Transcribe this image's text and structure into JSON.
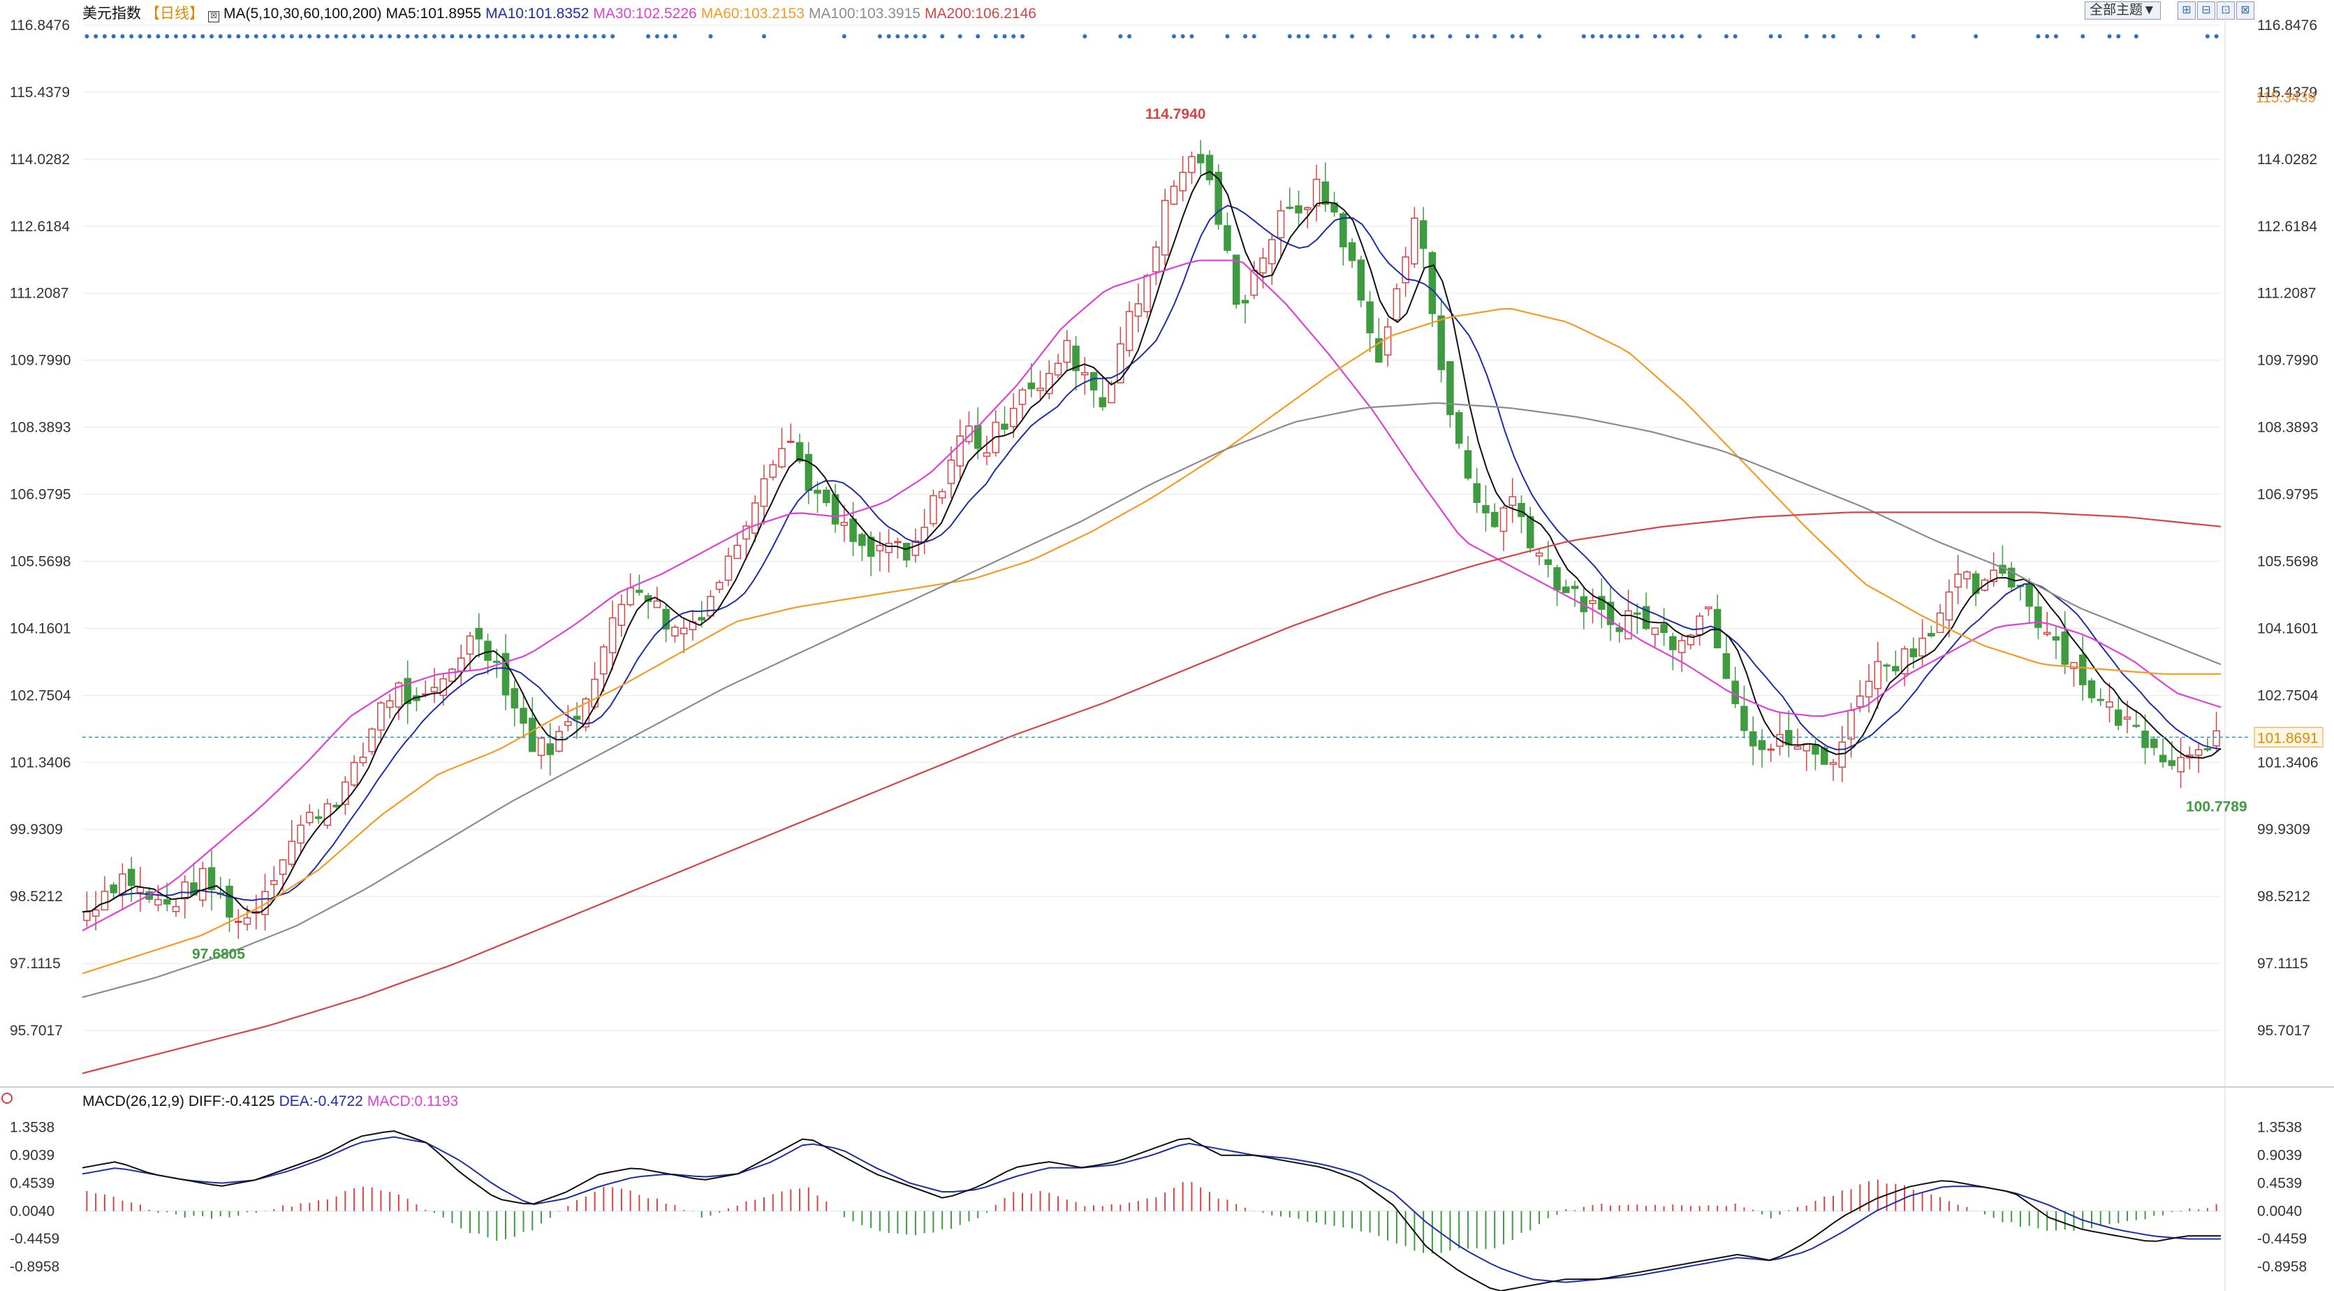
{
  "header": {
    "instrument": "美元指数",
    "period": "【日线】",
    "ma_params": "MA(5,10,30,60,100,200)",
    "ma5": "MA5:101.8955",
    "ma10": "MA10:101.8352",
    "ma30": "MA30:102.5226",
    "ma60": "MA60:103.2153",
    "ma100": "MA100:103.3915",
    "ma200": "MA200:106.2146",
    "theme_button": "全部主题▼"
  },
  "macd_header": {
    "params": "MACD(26,12,9)",
    "diff": "DIFF:-0.4125",
    "dea": "DEA:-0.4722",
    "macd": "MACD:0.1193"
  },
  "colors": {
    "up": "#d64545",
    "down": "#3f9b3f",
    "ma5": "#111111",
    "ma10": "#1c2fa8",
    "ma30": "#e040d8",
    "ma60": "#f59a23",
    "ma100": "#8c8c8c",
    "ma200": "#d64545",
    "grid": "#e8e8e8",
    "price_line": "#2a9bb8"
  },
  "chart_data": [
    {
      "type": "candlestick",
      "title": "美元指数",
      "ylim": [
        94.6,
        116.8476
      ],
      "y_ticks": [
        "116.8476",
        "115.4379",
        "114.0282",
        "112.6184",
        "111.2087",
        "109.7990",
        "108.3893",
        "106.9795",
        "105.5698",
        "104.1601",
        "102.7504",
        "101.3406",
        "99.9309",
        "98.5212",
        "97.1115",
        "95.7017"
      ],
      "annotations": {
        "high": "114.7940",
        "low_left": "97.6805",
        "low_right": "100.7789",
        "last_price": "101.8691",
        "ma60_marker": "115.3439"
      },
      "close_path": [
        98.2,
        98.7,
        99.0,
        98.5,
        98.3,
        98.6,
        98.9,
        98.4,
        97.9,
        98.6,
        99.4,
        100.0,
        100.4,
        100.7,
        101.3,
        102.6,
        102.9,
        102.4,
        102.9,
        103.6,
        104.1,
        103.4,
        102.4,
        101.6,
        101.8,
        102.3,
        103.3,
        104.3,
        105.3,
        104.7,
        104.1,
        104.3,
        104.9,
        105.7,
        106.8,
        107.8,
        108.1,
        107.2,
        106.5,
        106.1,
        105.6,
        106.0,
        105.5,
        106.4,
        107.5,
        108.4,
        107.9,
        108.6,
        109.4,
        109.1,
        110.1,
        109.6,
        108.9,
        110.3,
        111.2,
        112.8,
        113.8,
        114.1,
        112.6,
        110.9,
        111.9,
        112.7,
        113.0,
        113.4,
        112.8,
        111.4,
        109.8,
        111.1,
        112.9,
        110.6,
        108.2,
        106.9,
        106.4,
        106.9,
        106.0,
        105.3,
        104.8,
        104.6,
        104.2,
        104.5,
        104.2,
        103.9,
        104.2,
        104.6,
        103.2,
        102.0,
        101.6,
        101.8,
        101.6,
        101.3,
        101.9,
        103.2,
        103.4,
        103.6,
        104.0,
        104.6,
        105.2,
        104.9,
        105.4,
        105.0,
        104.3,
        103.8,
        103.2,
        102.6,
        102.3,
        102.0,
        101.7,
        101.3,
        101.8,
        101.9
      ],
      "moving_averages": [
        {
          "name": "MA30",
          "path": [
            97.8,
            98.3,
            98.8,
            99.6,
            100.4,
            101.3,
            102.3,
            102.9,
            103.2,
            103.3,
            103.6,
            104.2,
            104.9,
            105.3,
            105.8,
            106.3,
            106.6,
            106.5,
            106.8,
            107.4,
            108.3,
            109.3,
            110.5,
            111.3,
            111.6,
            111.9,
            111.9,
            111.0,
            109.9,
            108.7,
            107.3,
            106.0,
            105.5,
            105.0,
            104.5,
            103.9,
            103.4,
            102.8,
            102.4,
            102.3,
            102.5,
            103.2,
            103.7,
            104.2,
            104.3,
            104.0,
            103.5,
            102.8,
            102.5
          ]
        },
        {
          "name": "MA60",
          "path": [
            96.9,
            97.3,
            97.7,
            98.3,
            99.1,
            100.2,
            101.1,
            101.6,
            102.3,
            102.9,
            103.6,
            104.3,
            104.6,
            104.8,
            105.0,
            105.2,
            105.6,
            106.2,
            106.9,
            107.7,
            108.6,
            109.5,
            110.3,
            110.7,
            110.9,
            110.6,
            110.0,
            108.9,
            107.6,
            106.3,
            105.1,
            104.4,
            103.8,
            103.4,
            103.3,
            103.2,
            103.2
          ]
        },
        {
          "name": "MA100",
          "path": [
            96.4,
            96.8,
            97.3,
            97.9,
            98.7,
            99.6,
            100.5,
            101.3,
            102.1,
            102.9,
            103.6,
            104.3,
            105.0,
            105.7,
            106.4,
            107.2,
            107.9,
            108.5,
            108.8,
            108.9,
            108.8,
            108.6,
            108.3,
            107.9,
            107.3,
            106.7,
            106.0,
            105.4,
            104.6,
            104.0,
            103.4
          ]
        },
        {
          "name": "MA200",
          "path": [
            94.8,
            95.3,
            95.8,
            96.4,
            97.1,
            97.9,
            98.7,
            99.5,
            100.3,
            101.1,
            101.9,
            102.6,
            103.4,
            104.2,
            104.9,
            105.5,
            106.0,
            106.3,
            106.5,
            106.6,
            106.6,
            106.6,
            106.5,
            106.3
          ]
        }
      ]
    },
    {
      "type": "bar",
      "title": "MACD(26,12,9)",
      "ylim": [
        -1.2,
        1.62
      ],
      "y_ticks": [
        "1.3538",
        "0.9039",
        "0.4539",
        "0.0040",
        "-0.4459",
        "-0.8958"
      ],
      "diff_path": [
        0.7,
        0.8,
        0.6,
        0.5,
        0.4,
        0.5,
        0.7,
        0.9,
        1.2,
        1.3,
        1.1,
        0.6,
        0.2,
        0.1,
        0.3,
        0.6,
        0.7,
        0.6,
        0.5,
        0.6,
        0.9,
        1.2,
        0.9,
        0.6,
        0.4,
        0.2,
        0.4,
        0.7,
        0.8,
        0.7,
        0.8,
        1.0,
        1.2,
        0.9,
        0.9,
        0.8,
        0.7,
        0.5,
        0.1,
        -0.6,
        -1.0,
        -1.3,
        -1.2,
        -1.1,
        -1.1,
        -1.0,
        -0.9,
        -0.8,
        -0.7,
        -0.8,
        -0.5,
        -0.1,
        0.2,
        0.4,
        0.5,
        0.4,
        0.3,
        -0.1,
        -0.3,
        -0.4,
        -0.5,
        -0.4,
        -0.4
      ],
      "dea_path": [
        0.6,
        0.7,
        0.6,
        0.5,
        0.45,
        0.5,
        0.65,
        0.85,
        1.1,
        1.2,
        1.1,
        0.8,
        0.4,
        0.1,
        0.2,
        0.4,
        0.55,
        0.6,
        0.55,
        0.6,
        0.8,
        1.1,
        1.0,
        0.7,
        0.45,
        0.3,
        0.35,
        0.55,
        0.7,
        0.7,
        0.75,
        0.9,
        1.1,
        1.0,
        0.9,
        0.85,
        0.75,
        0.6,
        0.3,
        -0.2,
        -0.6,
        -0.9,
        -1.1,
        -1.15,
        -1.1,
        -1.05,
        -0.95,
        -0.85,
        -0.75,
        -0.8,
        -0.65,
        -0.35,
        0.0,
        0.25,
        0.4,
        0.4,
        0.3,
        0.1,
        -0.15,
        -0.3,
        -0.4,
        -0.45,
        -0.45
      ],
      "hist_path": [
        0.3,
        0.2,
        0.0,
        -0.1,
        -0.1,
        0.0,
        0.1,
        0.2,
        0.4,
        0.3,
        0.0,
        -0.3,
        -0.5,
        -0.3,
        0.1,
        0.4,
        0.3,
        0.1,
        -0.1,
        0.1,
        0.3,
        0.4,
        -0.1,
        -0.3,
        -0.4,
        -0.3,
        -0.1,
        0.3,
        0.3,
        0.1,
        0.1,
        0.2,
        0.5,
        0.2,
        0.0,
        -0.1,
        -0.2,
        -0.3,
        -0.5,
        -0.7,
        -0.6,
        -0.6,
        -0.3,
        0.0,
        0.1,
        0.1,
        0.1,
        0.1,
        0.1,
        -0.1,
        0.1,
        0.3,
        0.5,
        0.4,
        0.2,
        0.0,
        -0.2,
        -0.3,
        -0.3,
        -0.2,
        -0.1,
        0.0,
        0.1
      ]
    }
  ]
}
